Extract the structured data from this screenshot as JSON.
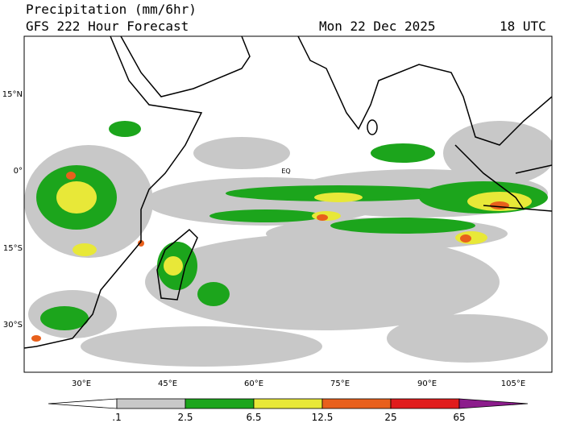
{
  "header": {
    "title": "Precipitation (mm/6hr)",
    "subtitle": "GFS 222 Hour Forecast",
    "date": "Mon 22 Dec 2025",
    "time": "18 UTC"
  },
  "map": {
    "lat_labels": [
      "15°N",
      "0°",
      "15°S",
      "30°S"
    ],
    "lon_labels": [
      "30°E",
      "45°E",
      "60°E",
      "75°E",
      "90°E",
      "105°E"
    ],
    "equator_label": "EQ"
  },
  "colorbar": {
    "labels": [
      ".1",
      "2.5",
      "6.5",
      "12.5",
      "25",
      "65"
    ]
  }
}
